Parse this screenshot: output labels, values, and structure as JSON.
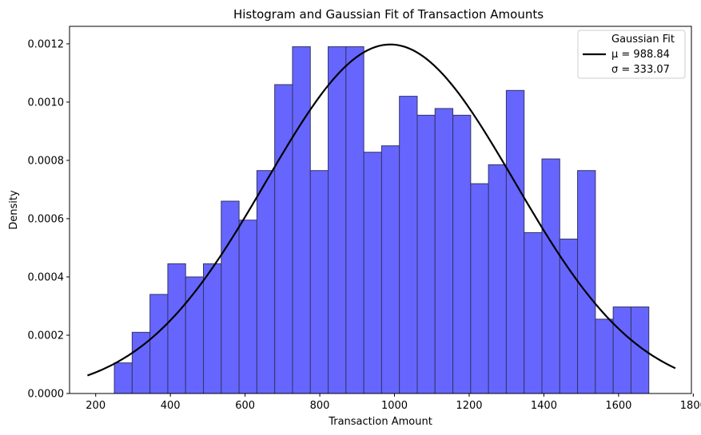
{
  "chart_data": {
    "type": "bar",
    "title": "Histogram and Gaussian Fit of Transaction Amounts",
    "xlabel": "Transaction Amount",
    "ylabel": "Density",
    "xlim": [
      130,
      1795
    ],
    "ylim": [
      0,
      0.00126
    ],
    "xticks": [
      200,
      400,
      600,
      800,
      1000,
      1200,
      1400,
      1600,
      1800
    ],
    "yticks": [
      0.0,
      0.0002,
      0.0004,
      0.0006,
      0.0008,
      0.001,
      0.0012
    ],
    "ytick_labels": [
      "0.0000",
      "0.0002",
      "0.0004",
      "0.0006",
      "0.0008",
      "0.0010",
      "0.0012"
    ],
    "bar_color": "#6666ff",
    "bar_edge_color": "#333366",
    "bins": {
      "edges": [
        250,
        297.7,
        345.4,
        393.1,
        440.8,
        488.5,
        536.2,
        583.9,
        631.6,
        679.3,
        727.0,
        774.7,
        822.4,
        870.1,
        917.8,
        965.5,
        1013.2,
        1060.9,
        1108.6,
        1156.3,
        1204.0,
        1251.7,
        1299.4,
        1347.1,
        1394.8,
        1442.5,
        1490.2,
        1537.9,
        1585.6,
        1633.3,
        1681.0
      ],
      "density": [
        0.000105,
        0.00021,
        0.00034,
        0.000445,
        0.0004,
        0.000445,
        0.00066,
        0.000595,
        0.000765,
        0.00106,
        0.00119,
        0.000765,
        0.00119,
        0.00119,
        0.000828,
        0.00085,
        0.00102,
        0.000955,
        0.000978,
        0.000955,
        0.00072,
        0.000785,
        0.00104,
        0.000552,
        0.000805,
        0.00053,
        0.000765,
        0.000255,
        0.000297,
        0.000297
      ]
    },
    "series": [
      {
        "name": "Gaussian Fit",
        "type": "line",
        "color": "#000000",
        "mu": 988.84,
        "sigma": 333.07,
        "x_range": [
          178,
          1752
        ]
      }
    ],
    "legend": {
      "position": "top-right",
      "lines": [
        "Gaussian Fit",
        "μ = 988.84",
        "σ = 333.07"
      ]
    },
    "grid": false
  }
}
